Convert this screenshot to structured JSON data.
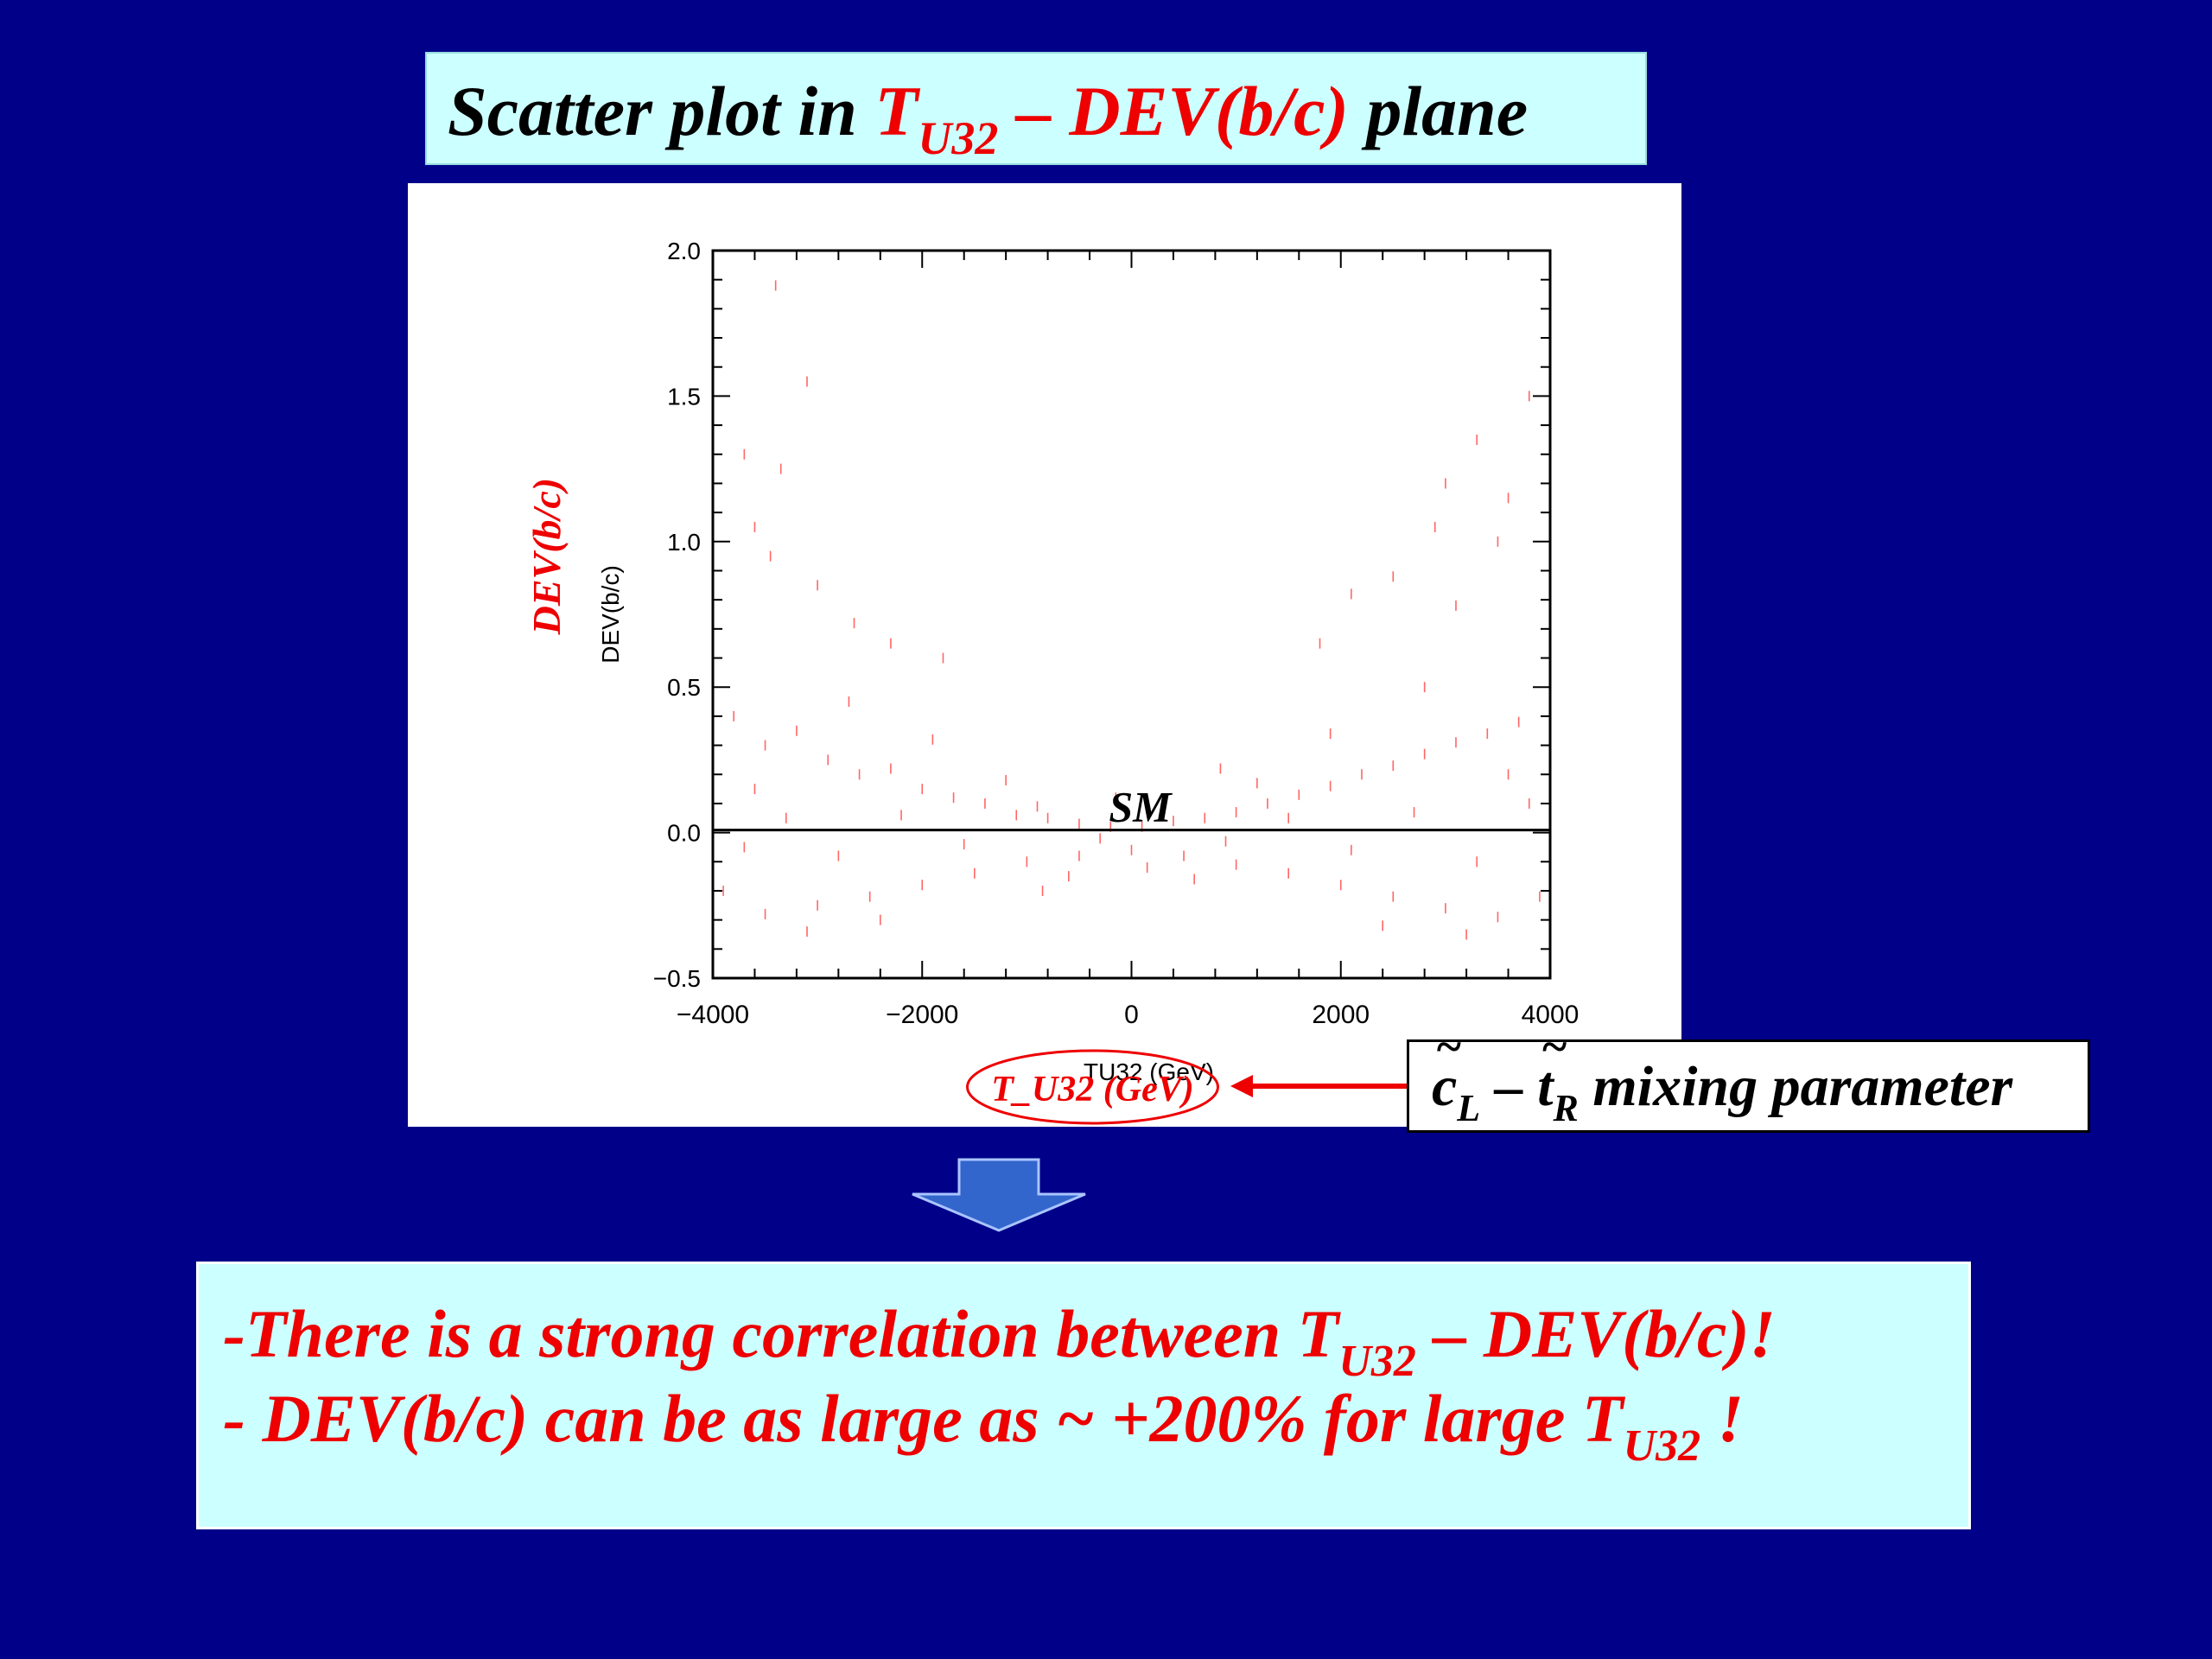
{
  "slide": {
    "title": {
      "prefix": "Scatter plot in ",
      "t_main": "T",
      "t_sub": "U32",
      "t_rest": " – DEV(b/c)",
      "suffix": "  plane"
    },
    "mixing_label": {
      "c": "c",
      "c_sub": "L",
      "dash": " – ",
      "t": "t",
      "t_sub": "R",
      "rest": " mixing parameter"
    },
    "conclusion": {
      "line1_prefix": "-There is a strong correlation between T",
      "line1_sub": "U32",
      "line1_suffix": " – DEV(b/c)!",
      "line2_prefix": "- DEV(b/c) can be as large as ~ +200% for large T",
      "line2_sub": "U32",
      "line2_suffix": " !"
    }
  },
  "chart_data": {
    "type": "scatter",
    "xlabel": "TU32 (GeV)",
    "ylabel": "DEV(b/c)",
    "xlabel_annotation": "T_U32 (GeV)",
    "ylabel_annotation": "DEV(b/c)",
    "sm_label": "SM",
    "sm_line_y": 0.0,
    "xlim": [
      -4000,
      4000
    ],
    "ylim": [
      -0.5,
      2.0
    ],
    "xticks": [
      -4000,
      -2000,
      0,
      2000,
      4000
    ],
    "xtick_labels": [
      "−4000",
      "−2000",
      "0",
      "2000",
      "4000"
    ],
    "yticks": [
      -0.5,
      0.0,
      0.5,
      1.0,
      1.5,
      2.0
    ],
    "ytick_labels": [
      "−0.5",
      "0.0",
      "0.5",
      "1.0",
      "1.5",
      "2.0"
    ],
    "grid": false,
    "point_color": "#ff6666",
    "sm_line_color": "#000000",
    "points": [
      [
        -3400,
        1.88
      ],
      [
        -3100,
        1.55
      ],
      [
        -3700,
        1.3
      ],
      [
        -3350,
        1.25
      ],
      [
        -3600,
        1.05
      ],
      [
        -3450,
        0.95
      ],
      [
        -3000,
        0.85
      ],
      [
        -2650,
        0.72
      ],
      [
        -2300,
        0.65
      ],
      [
        -1800,
        0.6
      ],
      [
        3800,
        1.5
      ],
      [
        3300,
        1.35
      ],
      [
        3000,
        1.2
      ],
      [
        3600,
        1.15
      ],
      [
        2900,
        1.05
      ],
      [
        3500,
        1.0
      ],
      [
        2500,
        0.88
      ],
      [
        2100,
        0.82
      ],
      [
        3100,
        0.78
      ],
      [
        1800,
        0.65
      ],
      [
        -3800,
        0.4
      ],
      [
        -3500,
        0.3
      ],
      [
        -3200,
        0.35
      ],
      [
        -2900,
        0.25
      ],
      [
        -2600,
        0.2
      ],
      [
        -2300,
        0.22
      ],
      [
        -2000,
        0.15
      ],
      [
        -1700,
        0.12
      ],
      [
        -1400,
        0.1
      ],
      [
        -1100,
        0.06
      ],
      [
        -800,
        0.05
      ],
      [
        -500,
        0.03
      ],
      [
        -200,
        0.02
      ],
      [
        100,
        0.02
      ],
      [
        400,
        0.04
      ],
      [
        700,
        0.05
      ],
      [
        1000,
        0.07
      ],
      [
        1300,
        0.1
      ],
      [
        1600,
        0.13
      ],
      [
        1900,
        0.16
      ],
      [
        2200,
        0.2
      ],
      [
        2500,
        0.23
      ],
      [
        2800,
        0.27
      ],
      [
        3100,
        0.31
      ],
      [
        3400,
        0.34
      ],
      [
        3700,
        0.38
      ],
      [
        -3900,
        -0.2
      ],
      [
        -3500,
        -0.28
      ],
      [
        -3000,
        -0.25
      ],
      [
        -2500,
        -0.22
      ],
      [
        -2000,
        -0.18
      ],
      [
        -1500,
        -0.14
      ],
      [
        -1000,
        -0.1
      ],
      [
        -500,
        -0.08
      ],
      [
        0,
        -0.06
      ],
      [
        500,
        -0.08
      ],
      [
        1000,
        -0.11
      ],
      [
        1500,
        -0.14
      ],
      [
        2000,
        -0.18
      ],
      [
        2500,
        -0.22
      ],
      [
        3000,
        -0.26
      ],
      [
        3500,
        -0.29
      ],
      [
        3900,
        -0.22
      ],
      [
        -3700,
        -0.05
      ],
      [
        -3300,
        0.05
      ],
      [
        -2800,
        -0.08
      ],
      [
        -2200,
        0.06
      ],
      [
        -1600,
        -0.04
      ],
      [
        -900,
        0.09
      ],
      [
        -300,
        -0.02
      ],
      [
        300,
        0.08
      ],
      [
        900,
        -0.03
      ],
      [
        1500,
        0.05
      ],
      [
        2100,
        -0.06
      ],
      [
        2700,
        0.07
      ],
      [
        3300,
        -0.1
      ],
      [
        3800,
        0.1
      ],
      [
        -3600,
        0.15
      ],
      [
        -2400,
        -0.3
      ],
      [
        -1200,
        0.18
      ],
      [
        1200,
        0.17
      ],
      [
        2400,
        -0.32
      ],
      [
        3600,
        0.2
      ],
      [
        -600,
        -0.15
      ],
      [
        600,
        -0.16
      ],
      [
        -150,
        0.12
      ],
      [
        150,
        -0.12
      ],
      [
        -1900,
        0.32
      ],
      [
        1900,
        0.34
      ],
      [
        -3100,
        -0.34
      ],
      [
        3200,
        -0.35
      ],
      [
        -2700,
        0.45
      ],
      [
        2800,
        0.5
      ],
      [
        -850,
        -0.2
      ],
      [
        850,
        0.22
      ]
    ]
  }
}
